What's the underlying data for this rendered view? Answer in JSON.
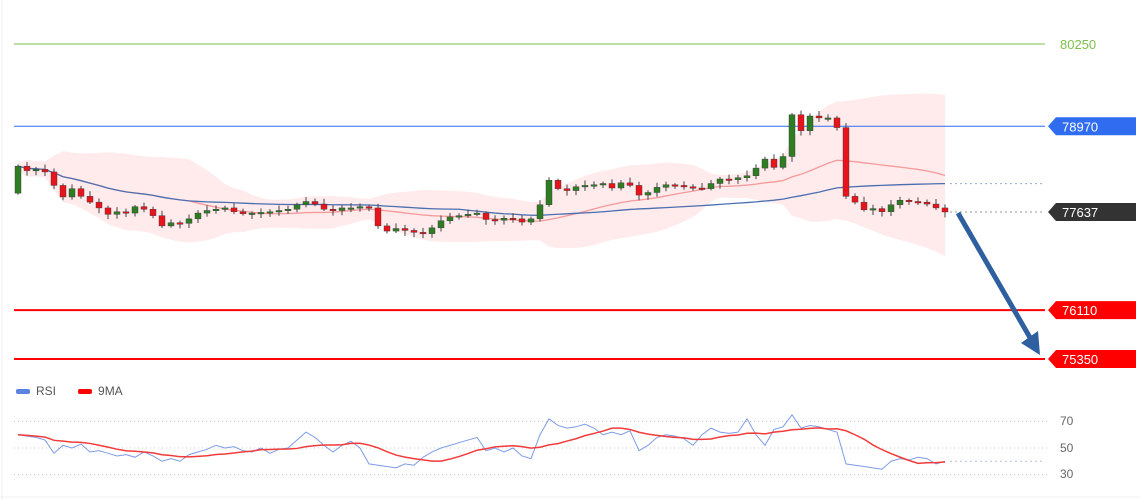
{
  "chart_data": {
    "type": "candlestick",
    "title": "",
    "price_levels": [
      {
        "name": "resistance-2",
        "value": 80250,
        "label": "80250",
        "color": "#7cbf4a",
        "style": "text"
      },
      {
        "name": "resistance-1",
        "value": 78970,
        "label": "78970",
        "color": "#2f6cf0",
        "style": "tag"
      },
      {
        "name": "current-price",
        "value": 77637,
        "label": "77637",
        "color": "#333333",
        "style": "tag"
      },
      {
        "name": "support-1",
        "value": 76110,
        "label": "76110",
        "color": "#ff0000",
        "style": "tag"
      },
      {
        "name": "support-2",
        "value": 75350,
        "label": "75350",
        "color": "#ff0000",
        "style": "tag"
      }
    ],
    "price_range": [
      75350,
      80250
    ],
    "first_open": 77930,
    "closes": [
      78350,
      78280,
      78300,
      78260,
      78050,
      77870,
      78000,
      77880,
      77790,
      77700,
      77600,
      77640,
      77620,
      77720,
      77680,
      77580,
      77420,
      77470,
      77460,
      77530,
      77620,
      77660,
      77680,
      77700,
      77640,
      77610,
      77620,
      77630,
      77640,
      77660,
      77680,
      77750,
      77800,
      77760,
      77680,
      77660,
      77700,
      77700,
      77720,
      77700,
      77420,
      77340,
      77380,
      77350,
      77320,
      77300,
      77390,
      77500,
      77560,
      77580,
      77600,
      77620,
      77520,
      77510,
      77540,
      77530,
      77480,
      77530,
      77750,
      78130,
      78000,
      77970,
      78030,
      78050,
      78060,
      78080,
      78010,
      78090,
      78050,
      77900,
      77940,
      78020,
      78060,
      78050,
      78030,
      78010,
      78000,
      78080,
      78150,
      78140,
      78170,
      78200,
      78320,
      78460,
      78330,
      78500,
      79150,
      78900,
      79130,
      79100,
      79100,
      78950,
      77880,
      77790,
      77670,
      77690,
      77640,
      77750,
      77820,
      77800,
      77790,
      77760,
      77700,
      77637
    ],
    "forecast_arrow": {
      "from": 77637,
      "to": 75350,
      "direction": "down"
    },
    "indicator": {
      "legend": [
        {
          "name": "RSI",
          "color": "#5b84e0"
        },
        {
          "name": "9MA",
          "color": "#ff0000"
        }
      ],
      "yticks": [
        70,
        50,
        30
      ],
      "range": [
        25,
        80
      ],
      "rsi": [
        60,
        59,
        58,
        56,
        46,
        52,
        50,
        53,
        47,
        48,
        46,
        44,
        45,
        43,
        47,
        44,
        40,
        42,
        40,
        45,
        47,
        49,
        52,
        50,
        51,
        48,
        47,
        50,
        46,
        49,
        50,
        56,
        62,
        58,
        52,
        47,
        52,
        55,
        50,
        38,
        37,
        36,
        35,
        38,
        37,
        43,
        47,
        50,
        52,
        54,
        56,
        58,
        48,
        50,
        47,
        50,
        44,
        42,
        60,
        72,
        67,
        65,
        66,
        68,
        65,
        60,
        62,
        60,
        63,
        48,
        52,
        58,
        60,
        59,
        57,
        52,
        60,
        65,
        62,
        61,
        62,
        72,
        60,
        52,
        64,
        66,
        75,
        65,
        67,
        66,
        64,
        62,
        38,
        37,
        36,
        35,
        34,
        40,
        42,
        41,
        43,
        42,
        38,
        40
      ],
      "ma_period": 9
    }
  }
}
